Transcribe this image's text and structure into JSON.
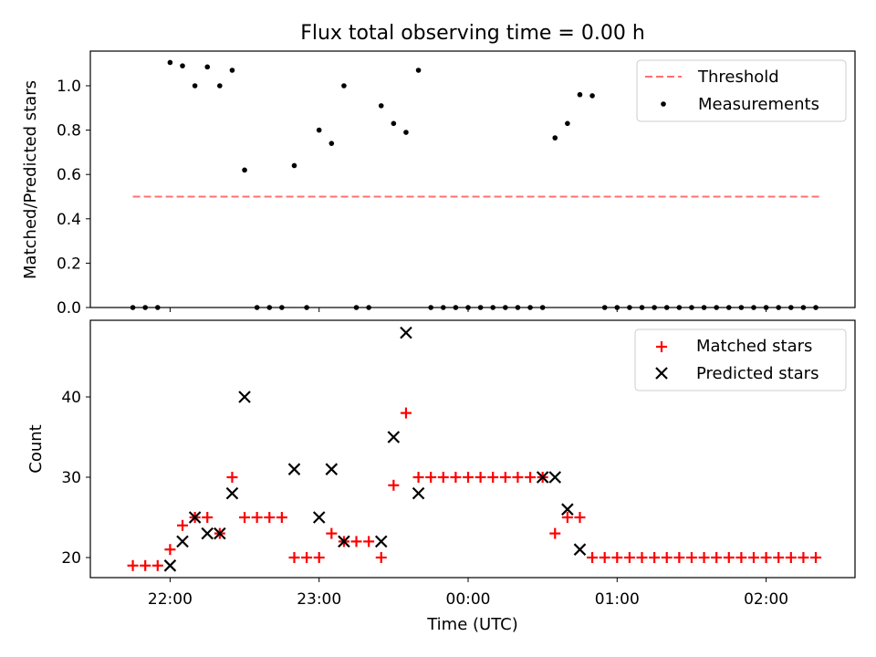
{
  "figure_title": "Flux total observing time = 0.00 h",
  "colors": {
    "matched": "#ff0000",
    "predicted": "#000000",
    "threshold": "#ff7070",
    "measurements": "#000000"
  },
  "chart_data": [
    {
      "type": "scatter",
      "title": "Flux total observing time = 0.00 h",
      "xlabel": "",
      "ylabel": "Matched/Predicted stars",
      "ylim": [
        0,
        1.16
      ],
      "yticks": [
        0.0,
        0.2,
        0.4,
        0.6,
        0.8,
        1.0
      ],
      "ytick_labels": [
        "0.0",
        "0.2",
        "0.4",
        "0.6",
        "0.8",
        "1.0"
      ],
      "legend_position": "top-right",
      "series": [
        {
          "name": "Threshold",
          "kind": "dashed-line",
          "x": [
            "21:45",
            "02:22"
          ],
          "values": [
            0.5,
            0.5
          ]
        },
        {
          "name": "Measurements",
          "kind": "dot",
          "x": [
            "21:45",
            "21:50",
            "21:55",
            "22:00",
            "22:05",
            "22:10",
            "22:15",
            "22:20",
            "22:25",
            "22:30",
            "22:35",
            "22:40",
            "22:45",
            "22:50",
            "22:55",
            "23:00",
            "23:05",
            "23:10",
            "23:15",
            "23:20",
            "23:25",
            "23:30",
            "23:35",
            "23:40",
            "23:45",
            "23:50",
            "23:55",
            "00:00",
            "00:05",
            "00:10",
            "00:15",
            "00:20",
            "00:25",
            "00:30",
            "00:35",
            "00:40",
            "00:45",
            "00:50",
            "00:55",
            "01:00",
            "01:05",
            "01:10",
            "01:15",
            "01:20",
            "01:25",
            "01:30",
            "01:35",
            "01:40",
            "01:45",
            "01:50",
            "01:55",
            "02:00",
            "02:05",
            "02:10",
            "02:15",
            "02:20"
          ],
          "values": [
            0,
            0,
            0,
            1.105,
            1.09,
            1.0,
            1.085,
            1.0,
            1.07,
            0.62,
            0,
            0,
            0,
            0.64,
            0,
            0.8,
            0.74,
            1.0,
            0,
            0,
            0.91,
            0.83,
            0.79,
            1.07,
            0,
            0,
            0,
            0,
            0,
            0,
            0,
            0,
            0,
            0,
            0.765,
            0.83,
            0.96,
            0.955,
            0,
            0,
            0,
            0,
            0,
            0,
            0,
            0,
            0,
            0,
            0,
            0,
            0,
            0,
            0,
            0,
            0,
            0
          ]
        }
      ]
    },
    {
      "type": "scatter",
      "title": "",
      "xlabel": "Time (UTC)",
      "ylabel": "Count",
      "ylim": [
        17.5,
        49
      ],
      "yticks": [
        20,
        30,
        40
      ],
      "ytick_labels": [
        "20",
        "30",
        "40"
      ],
      "xticks": [
        "22:00",
        "23:00",
        "00:00",
        "01:00",
        "02:00"
      ],
      "legend_position": "top-right",
      "series": [
        {
          "name": "Matched stars",
          "kind": "plus",
          "x": [
            "21:45",
            "21:50",
            "21:55",
            "22:00",
            "22:05",
            "22:10",
            "22:15",
            "22:20",
            "22:25",
            "22:30",
            "22:35",
            "22:40",
            "22:45",
            "22:50",
            "22:55",
            "23:00",
            "23:05",
            "23:10",
            "23:15",
            "23:20",
            "23:25",
            "23:30",
            "23:35",
            "23:40",
            "23:45",
            "23:50",
            "23:55",
            "00:00",
            "00:05",
            "00:10",
            "00:15",
            "00:20",
            "00:25",
            "00:30",
            "00:35",
            "00:40",
            "00:45",
            "00:50",
            "00:55",
            "01:00",
            "01:05",
            "01:10",
            "01:15",
            "01:20",
            "01:25",
            "01:30",
            "01:35",
            "01:40",
            "01:45",
            "01:50",
            "01:55",
            "02:00",
            "02:05",
            "02:10",
            "02:15",
            "02:20"
          ],
          "values": [
            19,
            19,
            19,
            21,
            24,
            25,
            25,
            23,
            30,
            25,
            25,
            25,
            25,
            20,
            20,
            20,
            23,
            22,
            22,
            22,
            20,
            29,
            38,
            30,
            30,
            30,
            30,
            30,
            30,
            30,
            30,
            30,
            30,
            30,
            23,
            25,
            25,
            20,
            20,
            20,
            20,
            20,
            20,
            20,
            20,
            20,
            20,
            20,
            20,
            20,
            20,
            20,
            20,
            20,
            20,
            20
          ]
        },
        {
          "name": "Predicted stars",
          "kind": "x",
          "x": [
            "22:00",
            "22:05",
            "22:10",
            "22:15",
            "22:20",
            "22:25",
            "22:30",
            "22:50",
            "23:00",
            "23:05",
            "23:10",
            "23:25",
            "23:30",
            "23:35",
            "23:40",
            "00:30",
            "00:35",
            "00:40",
            "00:45"
          ],
          "values": [
            19,
            22,
            25,
            23,
            23,
            28,
            40,
            31,
            25,
            31,
            22,
            22,
            35,
            48,
            28,
            30,
            30,
            26,
            21
          ]
        }
      ]
    }
  ]
}
